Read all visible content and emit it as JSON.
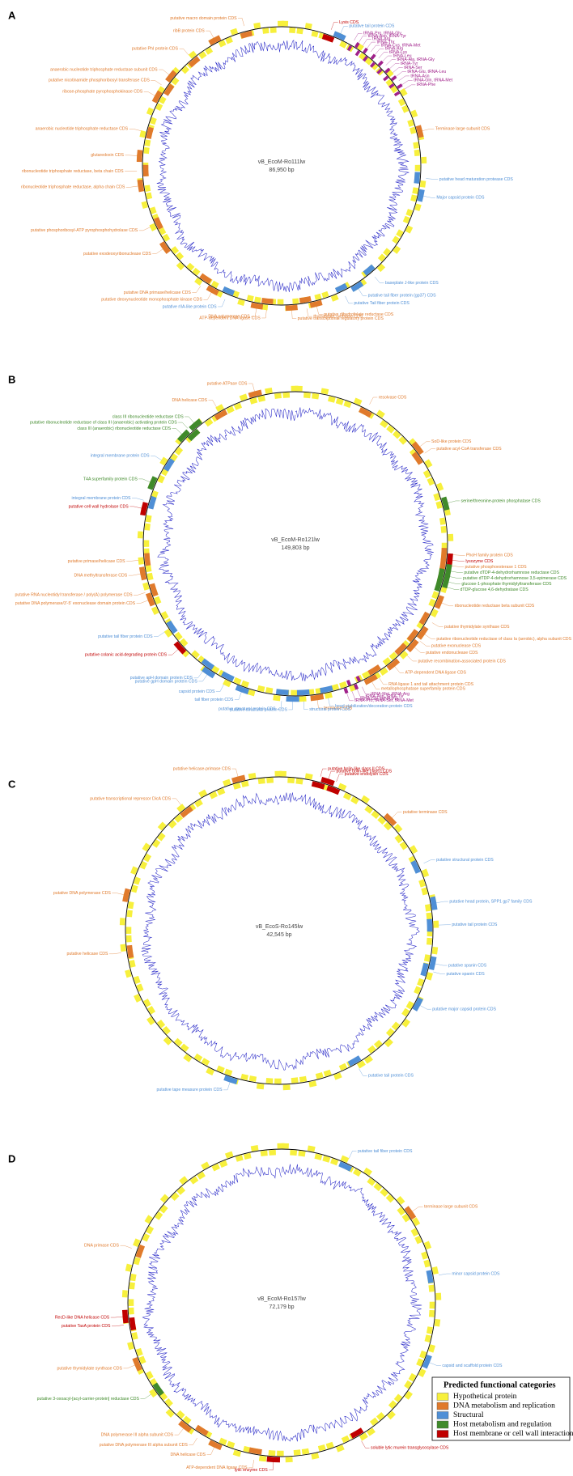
{
  "panels": [
    {
      "letter": "A",
      "name": "vB_EcoM-Ro111lw",
      "size": "86,950 bp",
      "labels": [
        {
          "text": "Lysis CDS",
          "color": "#c00000"
        },
        {
          "text": "putative tail protein CDS",
          "color": "#4f8fd6"
        },
        {
          "text": "tRNA-Pro, tRNA-Gly",
          "color": "#a0208a"
        },
        {
          "text": "tRNA-Asn, tRNA-Tyr",
          "color": "#a0208a"
        },
        {
          "text": "tRNA-Arg",
          "color": "#a0208a"
        },
        {
          "text": "tRNA-Thr",
          "color": "#a0208a"
        },
        {
          "text": "tRNA-Cys, tRNA-Met",
          "color": "#a0208a"
        },
        {
          "text": "tRNA-Arg",
          "color": "#a0208a"
        },
        {
          "text": "tRNA-Lys",
          "color": "#a0208a"
        },
        {
          "text": "tRNA-Leu",
          "color": "#a0208a"
        },
        {
          "text": "tRNA-Ala, tRNA-Gly",
          "color": "#a0208a"
        },
        {
          "text": "tRNA-Tyr",
          "color": "#a0208a"
        },
        {
          "text": "tRNA-Ser",
          "color": "#a0208a"
        },
        {
          "text": "tRNA-Glu, tRNA-Leu",
          "color": "#a0208a"
        },
        {
          "text": "tRNA-Asn",
          "color": "#a0208a"
        },
        {
          "text": "tRNA-Gln, tRNA-Met",
          "color": "#a0208a"
        },
        {
          "text": "tRNA-Phe",
          "color": "#a0208a"
        },
        {
          "text": "Terminase large subunit CDS",
          "color": "#e07a2c"
        },
        {
          "text": "putative head maturation protease CDS",
          "color": "#4f8fd6"
        },
        {
          "text": "Major capsid protein CDS",
          "color": "#4f8fd6"
        },
        {
          "text": "baseplate J-like protein CDS",
          "color": "#4f8fd6"
        },
        {
          "text": "putative tail fiber protein (gp37) CDS",
          "color": "#4f8fd6"
        },
        {
          "text": "putative Tail fiber protein CDS",
          "color": "#4f8fd6"
        },
        {
          "text": "putative dihydrofolate reductase CDS",
          "color": "#e07a2c"
        },
        {
          "text": "thymidylate synthase CDS",
          "color": "#e07a2c"
        },
        {
          "text": "putative transcriptional regulatory protein CDS",
          "color": "#e07a2c"
        },
        {
          "text": "ATP-dependent DNA ligase CDS",
          "color": "#e07a2c"
        },
        {
          "text": "DNA polymerase CDS",
          "color": "#e07a2c"
        },
        {
          "text": "putative rIIA-like protein CDS",
          "color": "#4f8fd6"
        },
        {
          "text": "putative deoxynucleotide monophosphate kinase CDS",
          "color": "#e07a2c"
        },
        {
          "text": "putative DNA primase/helicase CDS",
          "color": "#e07a2c"
        },
        {
          "text": "putative exodeoxyribonuclease CDS",
          "color": "#e07a2c"
        },
        {
          "text": "putative phosphoribosyl-ATP pyrophosphohydrolase CDS",
          "color": "#e07a2c"
        },
        {
          "text": "ribonucleotide triphosphate reductase, alpha chain CDS",
          "color": "#e07a2c"
        },
        {
          "text": "ribonucleotide triphosphate reductase, beta chain CDS",
          "color": "#e07a2c"
        },
        {
          "text": "glutaredoxin CDS",
          "color": "#e07a2c"
        },
        {
          "text": "anaerobic nucleotide triphosphate reductase CDS",
          "color": "#e07a2c"
        },
        {
          "text": "ribose-phosphate pyrophosphokinase CDS",
          "color": "#e07a2c"
        },
        {
          "text": "putative nicotinamide phosphoribosyl transferase CDS",
          "color": "#e07a2c"
        },
        {
          "text": "anaerobic nucleotide triphosphate reductase subunit CDS",
          "color": "#e07a2c"
        },
        {
          "text": "putative PhI protein CDS",
          "color": "#e07a2c"
        },
        {
          "text": "ribB protein CDS",
          "color": "#e07a2c"
        },
        {
          "text": "putative macro domain protein CDS",
          "color": "#e07a2c"
        }
      ]
    },
    {
      "letter": "B",
      "name": "vB_EcoM-Ro121lw",
      "size": "149,803 bp",
      "labels": [
        {
          "text": "resolvase CDS",
          "color": "#e07a2c"
        },
        {
          "text": "SoD-like protein CDS",
          "color": "#e07a2c"
        },
        {
          "text": "putative acyl-CoA transferase CDS",
          "color": "#e07a2c"
        },
        {
          "text": "serine/threonine-protein phosphatase CDS",
          "color": "#3f8a2a"
        },
        {
          "text": "PhoH family protein CDS",
          "color": "#e07a2c"
        },
        {
          "text": "lysozyme CDS",
          "color": "#c00000"
        },
        {
          "text": "putative phosphoesterase 1 CDS",
          "color": "#e07a2c"
        },
        {
          "text": "putative dTDP-4-dehydrorhamnose reductase CDS",
          "color": "#3f8a2a"
        },
        {
          "text": "putative dTDP-4-dehydrorhamnose 3,5-epimerase CDS",
          "color": "#3f8a2a"
        },
        {
          "text": "glucose-1-phosphate thymidylyltransferase CDS",
          "color": "#3f8a2a"
        },
        {
          "text": "dTDP-glucose 4,6-dehydratase CDS",
          "color": "#3f8a2a"
        },
        {
          "text": "ribonucleotide reductase beta subunit CDS",
          "color": "#e07a2c"
        },
        {
          "text": "putative thymidylate synthase CDS",
          "color": "#e07a2c"
        },
        {
          "text": "putative ribonucleotide reductase of class Ia (aerobic), alpha subunit CDS",
          "color": "#e07a2c"
        },
        {
          "text": "putative exonuclease CDS",
          "color": "#e07a2c"
        },
        {
          "text": "putative endonuclease CDS",
          "color": "#e07a2c"
        },
        {
          "text": "putative recombination-associated protein CDS",
          "color": "#e07a2c"
        },
        {
          "text": "ATP-dependent DNA ligase CDS",
          "color": "#e07a2c"
        },
        {
          "text": "RNA ligase 1 and tail attachment protein CDS",
          "color": "#e07a2c"
        },
        {
          "text": "metallophosphatase superfamily protein CDS",
          "color": "#e07a2c"
        },
        {
          "text": "tRNA-Met, tRNA-Arg",
          "color": "#a0208a"
        },
        {
          "text": "tRNA-Asn, tRNA-Tyr",
          "color": "#a0208a"
        },
        {
          "text": "tRNA-Gln, tRNA-Pro",
          "color": "#a0208a"
        },
        {
          "text": "tRNA-Pro, tRNA-Ser, tRNA-Met",
          "color": "#a0208a"
        },
        {
          "text": "head stabilization/decoration protein CDS",
          "color": "#4f8fd6"
        },
        {
          "text": "terminase CDS",
          "color": "#e07a2c"
        },
        {
          "text": "structural protein CDS",
          "color": "#4f8fd6"
        },
        {
          "text": "putative structural protein CDS",
          "color": "#4f8fd6"
        },
        {
          "text": "putative structural protein CDS",
          "color": "#4f8fd6"
        },
        {
          "text": "tail fiber protein CDS",
          "color": "#4f8fd6"
        },
        {
          "text": "capsid protein CDS",
          "color": "#4f8fd6"
        },
        {
          "text": "putative gpH domain protein CDS",
          "color": "#4f8fd6"
        },
        {
          "text": "putative apH domain protein CDS",
          "color": "#4f8fd6"
        },
        {
          "text": "putative colanic acid-degrading protein CDS",
          "color": "#c00000"
        },
        {
          "text": "putative tail fiber protein CDS",
          "color": "#4f8fd6"
        },
        {
          "text": "putative DNA polymerase/3'-5' exonuclease domain protein CDS",
          "color": "#e07a2c"
        },
        {
          "text": "putative RNA nucleotidyl transferase / poly(A) polymerase CDS",
          "color": "#e07a2c"
        },
        {
          "text": "DNA methyltransferase CDS",
          "color": "#e07a2c"
        },
        {
          "text": "putative primase/helicase CDS",
          "color": "#e07a2c"
        },
        {
          "text": "putative cell wall hydrolase CDS",
          "color": "#c00000"
        },
        {
          "text": "integral membrane protein CDS",
          "color": "#4f8fd6"
        },
        {
          "text": "T4A superfamily protein CDS",
          "color": "#3f8a2a"
        },
        {
          "text": "integral membrane protein CDS",
          "color": "#4f8fd6"
        },
        {
          "text": "class III (anaerobic) ribonucleotide reductase CDS",
          "color": "#3f8a2a"
        },
        {
          "text": "putative ribonucleotide reductase of class III (anaerobic) activating protein CDS",
          "color": "#3f8a2a"
        },
        {
          "text": "class III ribonucleotide reductase CDS",
          "color": "#3f8a2a"
        },
        {
          "text": "DNA helicase CDS",
          "color": "#e07a2c"
        },
        {
          "text": "putative ATPase CDS",
          "color": "#e07a2c"
        }
      ]
    },
    {
      "letter": "C",
      "name": "vB_EcoS-Ro145lw",
      "size": "42,545 bp",
      "labels": [
        {
          "text": "putative holin-like class II CDS",
          "color": "#c00000"
        },
        {
          "text": "putative holin-like class I CDS",
          "color": "#c00000"
        },
        {
          "text": "putative endolysin CDS",
          "color": "#c00000"
        },
        {
          "text": "putative terminase CDS",
          "color": "#e07a2c"
        },
        {
          "text": "putative structural protein CDS",
          "color": "#4f8fd6"
        },
        {
          "text": "putative head protein, SPP1 gp7 family CDS",
          "color": "#4f8fd6"
        },
        {
          "text": "putative tail protein CDS",
          "color": "#4f8fd6"
        },
        {
          "text": "putative spanin CDS",
          "color": "#4f8fd6"
        },
        {
          "text": "putative spanin CDS",
          "color": "#4f8fd6"
        },
        {
          "text": "putative major capsid protein CDS",
          "color": "#4f8fd6"
        },
        {
          "text": "putative tail protein CDS",
          "color": "#4f8fd6"
        },
        {
          "text": "putative tape measure protein CDS",
          "color": "#4f8fd6"
        },
        {
          "text": "putative helicase CDS",
          "color": "#e07a2c"
        },
        {
          "text": "putative DNA polymerase CDS",
          "color": "#e07a2c"
        },
        {
          "text": "putative transcriptional repressor DicA CDS",
          "color": "#e07a2c"
        },
        {
          "text": "putative helicase-primase CDS",
          "color": "#e07a2c"
        }
      ]
    },
    {
      "letter": "D",
      "name": "vB_EcoM-Ro157lw",
      "size": "72,179 bp",
      "labels": [
        {
          "text": "putative tail fiber protein CDS",
          "color": "#4f8fd6"
        },
        {
          "text": "terminase large subunit CDS",
          "color": "#e07a2c"
        },
        {
          "text": "minor capsid protein CDS",
          "color": "#4f8fd6"
        },
        {
          "text": "capsid and scaffold protein CDS",
          "color": "#4f8fd6"
        },
        {
          "text": "soluble lytic murein transglycosylase CDS",
          "color": "#c00000"
        },
        {
          "text": "lytic enzyme CDS",
          "color": "#c00000"
        },
        {
          "text": "ATP-dependent DNA ligase CDS",
          "color": "#e07a2c"
        },
        {
          "text": "DNA helicase CDS",
          "color": "#e07a2c"
        },
        {
          "text": "putative DNA polymerase III alpha subunit CDS",
          "color": "#e07a2c"
        },
        {
          "text": "DNA polymerase III alpha subunit CDS",
          "color": "#e07a2c"
        },
        {
          "text": "putative 3-oxoacyl-[acyl-carrier-protein] reductase CDS",
          "color": "#3f8a2a"
        },
        {
          "text": "putative thymidylate synthase CDS",
          "color": "#e07a2c"
        },
        {
          "text": "putative TasA protein CDS",
          "color": "#c00000"
        },
        {
          "text": "RecD-like DNA helicase CDS",
          "color": "#c00000"
        },
        {
          "text": "DNA primase CDS",
          "color": "#e07a2c"
        }
      ]
    }
  ],
  "legend": {
    "title": "Predicted  functional categories",
    "items": [
      {
        "name": "Hypothetical protein",
        "color": "#f7f03c"
      },
      {
        "name": "DNA metabolism and replication",
        "color": "#e07a2c"
      },
      {
        "name": "Structural",
        "color": "#4f8fd6"
      },
      {
        "name": "Host metabolism and regulation",
        "color": "#3f8a2a"
      },
      {
        "name": "Host membrane or cell wall interaction",
        "color": "#c00000"
      }
    ]
  }
}
